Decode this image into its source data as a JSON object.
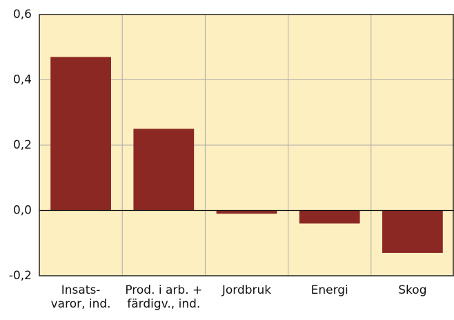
{
  "chart_data": {
    "type": "bar",
    "categories": [
      "Insats-\nvaror, ind.",
      "Prod. i arb. +\nfärdigv., ind.",
      "Jordbruk",
      "Energi",
      "Skog"
    ],
    "values": [
      0.47,
      0.25,
      -0.01,
      -0.04,
      -0.13
    ],
    "color": "#8b2823",
    "background": "#fdefc0",
    "ylim": [
      -0.2,
      0.6
    ],
    "yticks": [
      {
        "value": -0.2,
        "label": "-0,2"
      },
      {
        "value": 0,
        "label": "0,0"
      },
      {
        "value": 0.2,
        "label": "0,2"
      },
      {
        "value": 0.4,
        "label": "0,4"
      },
      {
        "value": 0.6,
        "label": "0,6"
      }
    ],
    "grid": true
  }
}
